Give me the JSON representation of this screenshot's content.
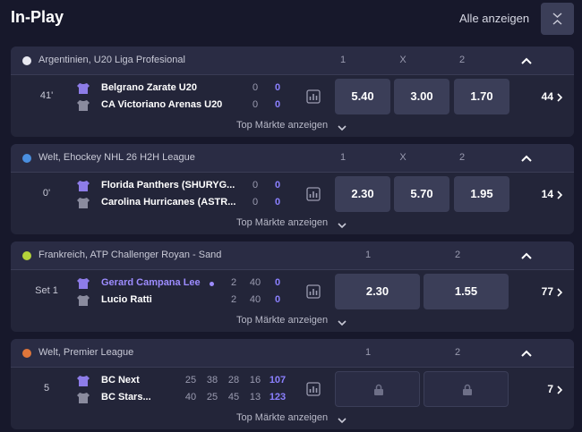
{
  "header": {
    "title": "In-Play",
    "show_all": "Alle anzeigen"
  },
  "events": [
    {
      "sport": "football",
      "league": "Argentinien, U20 Liga Profesional",
      "columns": [
        "1",
        "X",
        "2"
      ],
      "time": "41'",
      "teams": [
        {
          "name": "Belgrano Zarate U20",
          "scores": [
            0,
            0
          ]
        },
        {
          "name": "CA Victoriano Arenas U20",
          "scores": [
            0,
            0
          ]
        }
      ],
      "odds": [
        "5.40",
        "3.00",
        "1.70"
      ],
      "more": "44",
      "top_markets": "Top Märkte anzeigen"
    },
    {
      "sport": "hockey",
      "league": "Welt, Ehockey NHL 26 H2H League",
      "columns": [
        "1",
        "X",
        "2"
      ],
      "time": "0'",
      "teams": [
        {
          "name": "Florida Panthers (SHURYG...",
          "scores": [
            0,
            0
          ]
        },
        {
          "name": "Carolina Hurricanes (ASTR...",
          "scores": [
            0,
            0
          ]
        }
      ],
      "odds": [
        "2.30",
        "5.70",
        "1.95"
      ],
      "more": "14",
      "top_markets": "Top Märkte anzeigen"
    },
    {
      "sport": "tennis",
      "league": "Frankreich, ATP Challenger Royan - Sand",
      "columns": [
        "1",
        "2"
      ],
      "time": "Set 1",
      "teams": [
        {
          "name": "Gerard Campana Lee",
          "scores": [
            2,
            40,
            0
          ],
          "serving": true
        },
        {
          "name": "Lucio Ratti",
          "scores": [
            2,
            40,
            0
          ]
        }
      ],
      "odds": [
        "2.30",
        "1.55"
      ],
      "more": "77",
      "top_markets": "Top Märkte anzeigen"
    },
    {
      "sport": "basketball",
      "league": "Welt, Premier League",
      "columns": [
        "1",
        "2"
      ],
      "time": "5",
      "teams": [
        {
          "name": "BC Next",
          "scores": [
            25,
            38,
            28,
            16,
            107
          ]
        },
        {
          "name": "BC Stars...",
          "scores": [
            40,
            25,
            45,
            13,
            123
          ]
        }
      ],
      "odds": [
        null,
        null
      ],
      "more": "7",
      "top_markets": "Top Märkte anzeigen"
    }
  ]
}
